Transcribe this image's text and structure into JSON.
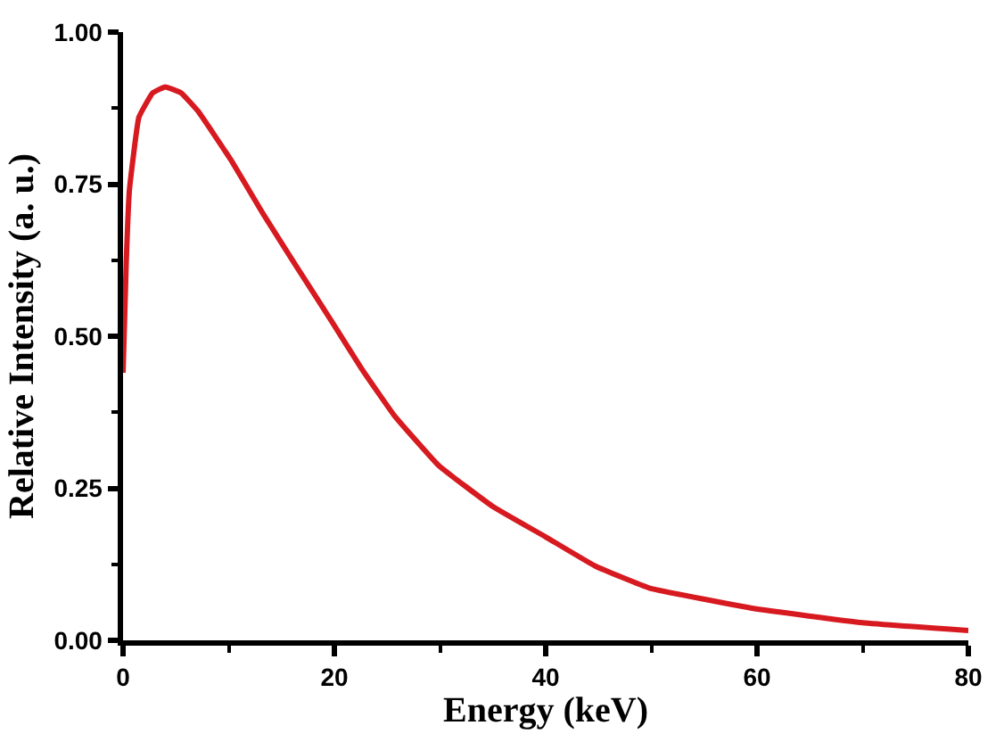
{
  "chart_data": {
    "type": "line",
    "xlabel": "Energy (keV)",
    "ylabel": "Relative Intensity (a. u.)",
    "xlim": [
      0,
      80
    ],
    "xticks": [
      0,
      20,
      40,
      60,
      80
    ],
    "ylim": [
      0,
      1
    ],
    "yticks": [
      {
        "value": 0,
        "label": "0.00"
      },
      {
        "value": 0.25,
        "label": "0.25"
      },
      {
        "value": 0.5,
        "label": "0.50"
      },
      {
        "value": 0.75,
        "label": "0.75"
      },
      {
        "value": 1,
        "label": "1.00"
      }
    ],
    "marker": "none",
    "line_style": "solid",
    "series": [
      {
        "color": "#d71920",
        "x": [
          0,
          0.3,
          0.6,
          1.5,
          2.8,
          4,
          5.5,
          7.1,
          10.2,
          13.3,
          16.4,
          19.8,
          22.6,
          25.7,
          29.9,
          35,
          40,
          44.7,
          49.8,
          59.8,
          70,
          80
        ],
        "values": [
          0.44,
          0.62,
          0.74,
          0.86,
          0.9,
          0.91,
          0.9,
          0.87,
          0.79,
          0.7,
          0.615,
          0.523,
          0.446,
          0.369,
          0.287,
          0.22,
          0.17,
          0.122,
          0.086,
          0.052,
          0.029,
          0.016
        ]
      }
    ]
  }
}
